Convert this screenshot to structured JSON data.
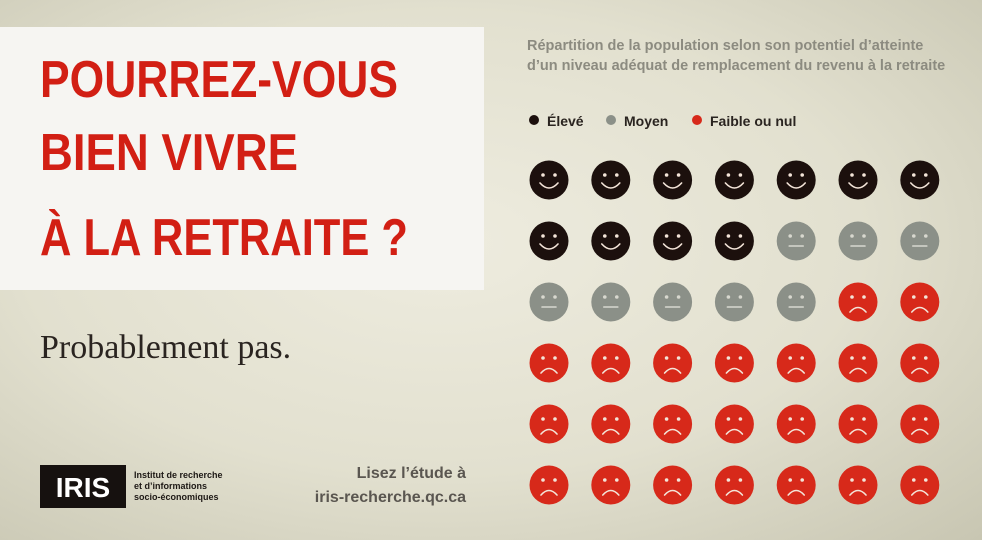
{
  "headline": [
    "POURREZ-VOUS",
    "BIEN VIVRE",
    "À LA RETRAITE ?"
  ],
  "subheadline": "Probablement pas.",
  "logo": {
    "name": "IRIS",
    "lines": [
      "Institut de recherche",
      "et d’informations",
      "socio-économiques"
    ]
  },
  "cta": [
    "Lisez l’étude à",
    "iris-recherche.qc.ca"
  ],
  "chart_data": {
    "type": "pictogram",
    "title": "Répartition de la population selon son potentiel d’atteinte d’un niveau adéquat de remplacement du revenu à la retraite",
    "categories": [
      "Élevé",
      "Moyen",
      "Faible ou nul"
    ],
    "values": [
      11,
      8,
      23
    ],
    "colors": [
      "#1c100d",
      "#8b9088",
      "#d7291a"
    ]
  }
}
